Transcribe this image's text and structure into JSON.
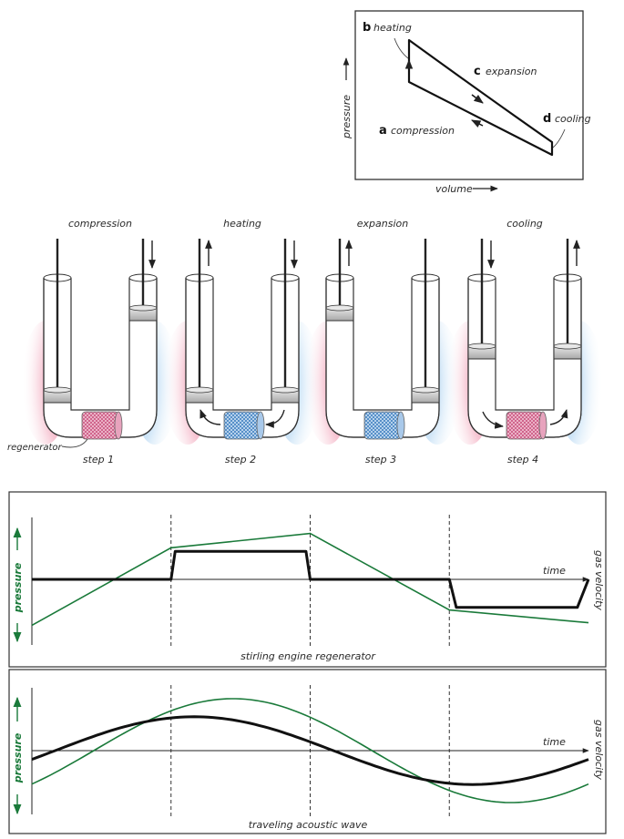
{
  "pv_diagram": {
    "y_axis_label": "pressure",
    "x_axis_label": "volume",
    "points": [
      {
        "letter": "a",
        "label": "compression"
      },
      {
        "letter": "b",
        "label": "heating"
      },
      {
        "letter": "c",
        "label": "expansion"
      },
      {
        "letter": "d",
        "label": "cooling"
      }
    ]
  },
  "engine_steps": [
    {
      "title": "compression",
      "caption": "step 1"
    },
    {
      "title": "heating",
      "caption": "step 2"
    },
    {
      "title": "expansion",
      "caption": "step 3"
    },
    {
      "title": "cooling",
      "caption": "step 4"
    }
  ],
  "regenerator_label": "regenerator",
  "colors": {
    "hot": "#e0557a",
    "cold": "#5aa6e0",
    "pressure_curve": "#1a7a3a",
    "velocity_curve": "#111111",
    "regenerator_hot": "#d9709a",
    "regenerator_cold": "#5b9ad6"
  },
  "chart_data": [
    {
      "type": "line",
      "title": "stirling engine regenerator",
      "ylabel_left": "pressure",
      "ylabel_right": "gas velocity",
      "xlabel": "time",
      "x": [
        0,
        1,
        2,
        3,
        4
      ],
      "series": [
        {
          "name": "pressure",
          "color": "#1a7a3a",
          "x": [
            0,
            1,
            2,
            3,
            4
          ],
          "values": [
            -0.9,
            0.62,
            0.9,
            -0.6,
            -0.85
          ]
        },
        {
          "name": "gas velocity",
          "color": "#111111",
          "x": [
            0,
            1,
            1.03,
            1.97,
            2,
            3,
            3.05,
            3.92,
            4
          ],
          "values": [
            0,
            0,
            0.55,
            0.55,
            0,
            0,
            -0.55,
            -0.55,
            0
          ]
        }
      ],
      "ylim": [
        -1,
        1
      ]
    },
    {
      "type": "line",
      "title": "traveling acoustic wave",
      "ylabel_left": "pressure",
      "ylabel_right": "gas velocity",
      "xlabel": "time",
      "x": [
        0,
        1,
        2,
        3,
        4
      ],
      "series": [
        {
          "name": "pressure",
          "color": "#1a7a3a",
          "shape": "sine",
          "amplitude": 0.92,
          "period": 4,
          "phase_deg": -40
        },
        {
          "name": "gas velocity",
          "color": "#111111",
          "shape": "sine",
          "amplitude": 0.6,
          "period": 4,
          "phase_deg": -15
        }
      ],
      "ylim": [
        -1,
        1
      ]
    }
  ]
}
